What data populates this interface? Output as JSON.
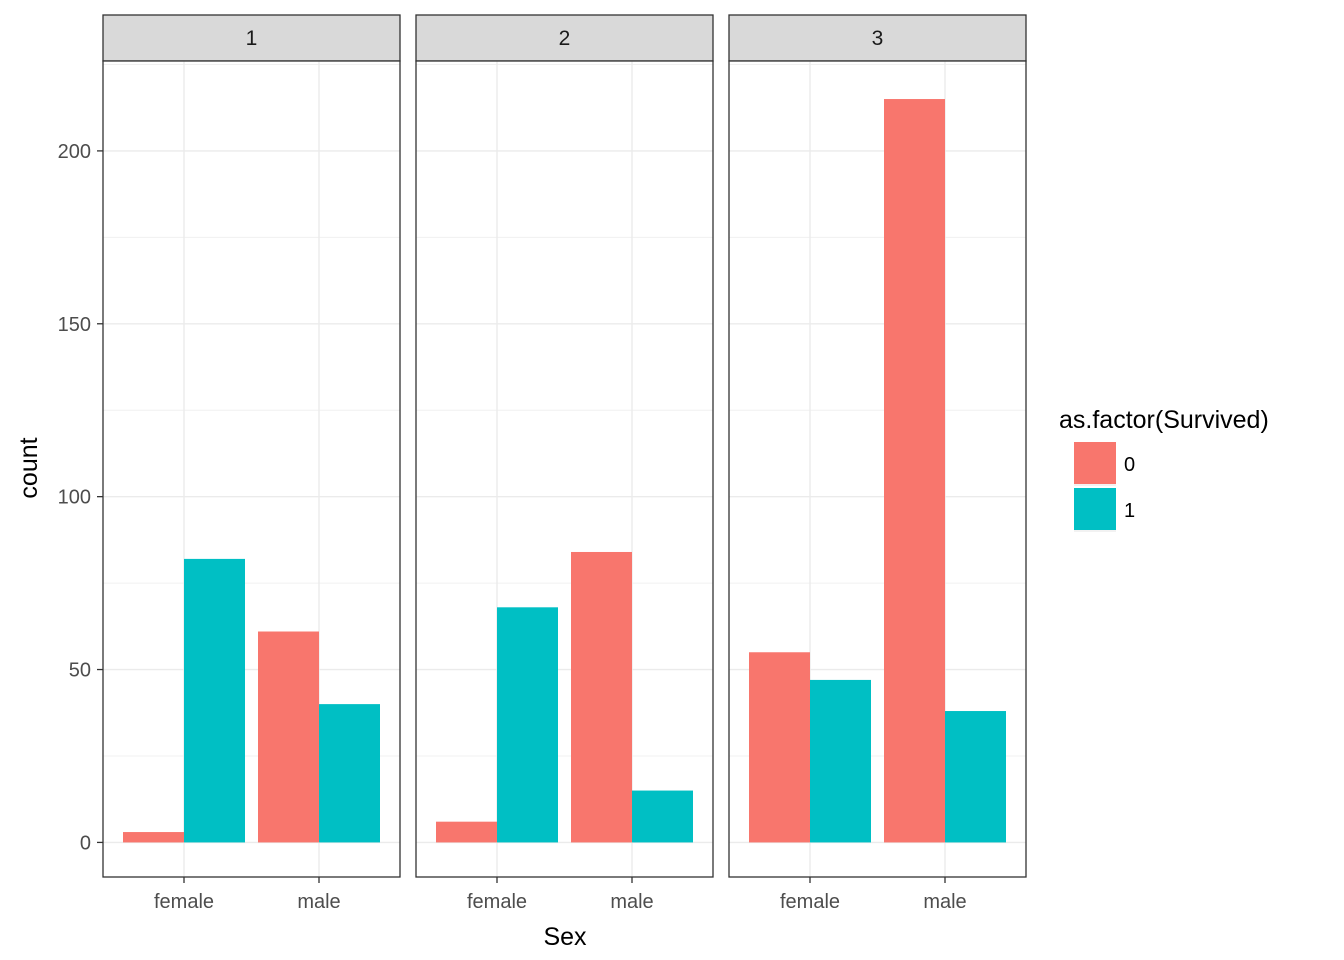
{
  "chart_data": {
    "type": "bar",
    "facet_by": "Pclass",
    "panels": [
      {
        "label": "1",
        "categories": [
          "female",
          "male"
        ],
        "series": [
          {
            "name": "0",
            "values": [
              3,
              61
            ]
          },
          {
            "name": "1",
            "values": [
              82,
              40
            ]
          }
        ]
      },
      {
        "label": "2",
        "categories": [
          "female",
          "male"
        ],
        "series": [
          {
            "name": "0",
            "values": [
              6,
              84
            ]
          },
          {
            "name": "1",
            "values": [
              68,
              15
            ]
          }
        ]
      },
      {
        "label": "3",
        "categories": [
          "female",
          "male"
        ],
        "series": [
          {
            "name": "0",
            "values": [
              55,
              215
            ]
          },
          {
            "name": "1",
            "values": [
              47,
              38
            ]
          }
        ]
      }
    ],
    "xlabel": "Sex",
    "ylabel": "count",
    "ylim": [
      -10,
      226
    ],
    "yticks": [
      0,
      50,
      100,
      150,
      200
    ],
    "grid": true,
    "legend": {
      "title": "as.factor(Survived)",
      "placement": "right",
      "entries": [
        {
          "name": "0",
          "color": "#F8766D"
        },
        {
          "name": "1",
          "color": "#00BFC4"
        }
      ]
    },
    "colors": {
      "0": "#F8766D",
      "1": "#00BFC4"
    }
  }
}
